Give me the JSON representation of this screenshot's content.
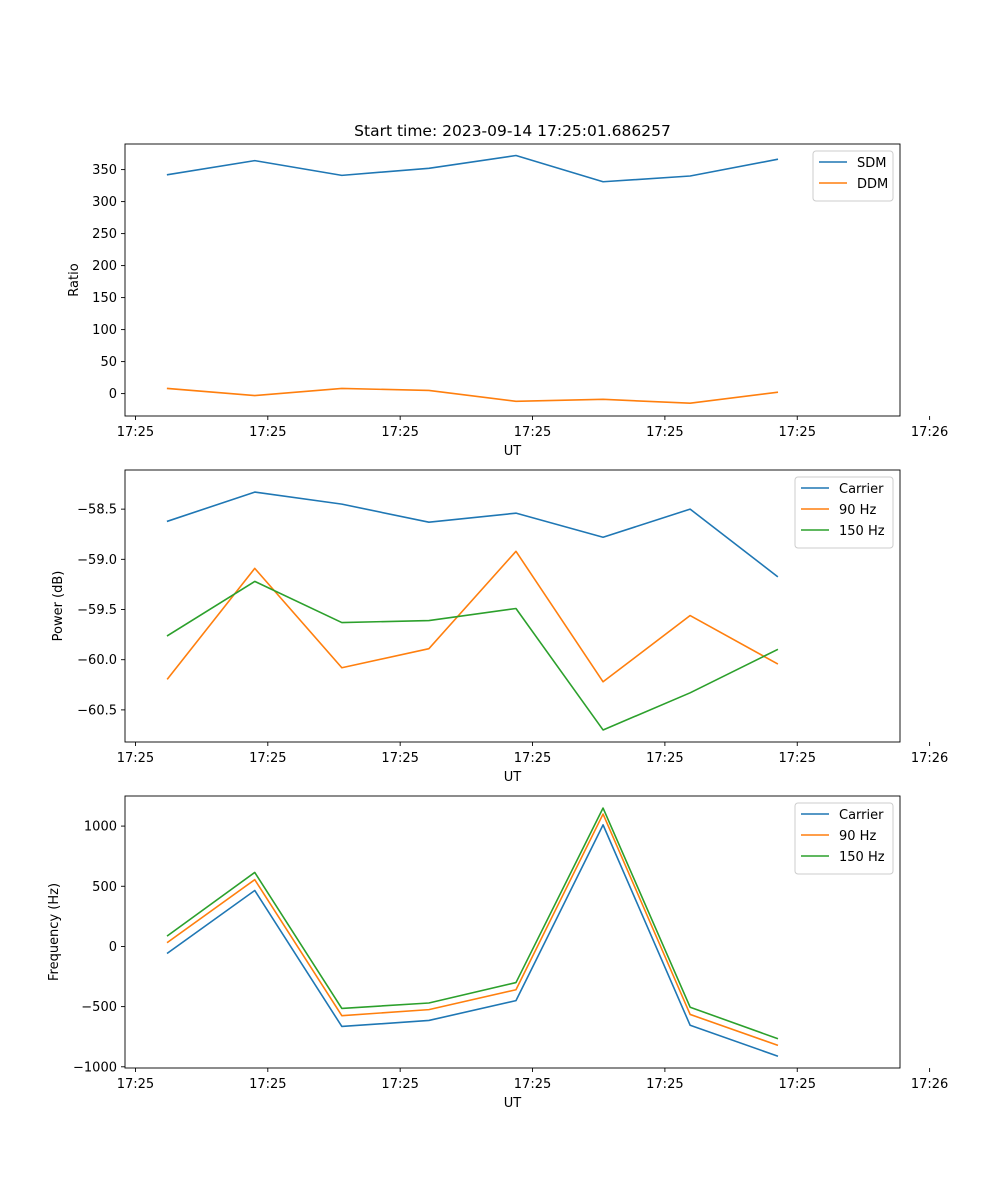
{
  "chart_data": [
    {
      "type": "line",
      "title": "Start time: 2023-09-14 17:25:01.686257",
      "xlabel": "UT",
      "ylabel": "Ratio",
      "x": [
        0,
        1,
        2,
        3,
        4,
        5,
        6,
        7
      ],
      "xlim": [
        -0.49,
        8.41
      ],
      "x_tick_positions": [
        -0.37,
        1.15,
        2.67,
        4.19,
        5.71,
        7.23,
        8.75
      ],
      "x_tick_labels": [
        "17:25",
        "17:25",
        "17:25",
        "17:25",
        "17:25",
        "17:25",
        "17:26"
      ],
      "ylim": [
        -35,
        390
      ],
      "y_ticks": [
        0,
        50,
        100,
        150,
        200,
        250,
        300,
        350
      ],
      "legend_position": "top-right",
      "series": [
        {
          "name": "SDM",
          "color": "#1f77b4",
          "values": [
            342,
            364,
            341,
            352,
            372,
            331,
            340,
            366
          ]
        },
        {
          "name": "DDM",
          "color": "#ff7f0e",
          "values": [
            8,
            -3,
            8,
            5,
            -12,
            -9,
            -15,
            2
          ]
        }
      ]
    },
    {
      "type": "line",
      "title": "",
      "xlabel": "UT",
      "ylabel": "Power (dB)",
      "x": [
        0,
        1,
        2,
        3,
        4,
        5,
        6,
        7
      ],
      "xlim": [
        -0.49,
        8.41
      ],
      "x_tick_positions": [
        -0.37,
        1.15,
        2.67,
        4.19,
        5.71,
        7.23,
        8.75
      ],
      "x_tick_labels": [
        "17:25",
        "17:25",
        "17:25",
        "17:25",
        "17:25",
        "17:25",
        "17:26"
      ],
      "ylim": [
        -60.82,
        -58.11
      ],
      "y_ticks": [
        -60.5,
        -60.0,
        -59.5,
        -59.0,
        -58.5
      ],
      "y_tick_labels": [
        "−60.5",
        "−60.0",
        "−59.5",
        "−59.0",
        "−58.5"
      ],
      "legend_position": "top-right",
      "series": [
        {
          "name": "Carrier",
          "color": "#1f77b4",
          "values": [
            -58.62,
            -58.33,
            -58.45,
            -58.63,
            -58.54,
            -58.78,
            -58.5,
            -59.17
          ]
        },
        {
          "name": "90 Hz",
          "color": "#ff7f0e",
          "values": [
            -60.19,
            -59.09,
            -60.08,
            -59.89,
            -58.92,
            -60.22,
            -59.56,
            -60.04
          ]
        },
        {
          "name": "150 Hz",
          "color": "#2ca02c",
          "values": [
            -59.76,
            -59.22,
            -59.63,
            -59.61,
            -59.49,
            -60.7,
            -60.33,
            -59.9
          ]
        }
      ]
    },
    {
      "type": "line",
      "title": "",
      "xlabel": "UT",
      "ylabel": "Frequency (Hz)",
      "x": [
        0,
        1,
        2,
        3,
        4,
        5,
        6,
        7
      ],
      "xlim": [
        -0.49,
        8.41
      ],
      "x_tick_positions": [
        -0.37,
        1.15,
        2.67,
        4.19,
        5.71,
        7.23,
        8.75
      ],
      "x_tick_labels": [
        "17:25",
        "17:25",
        "17:25",
        "17:25",
        "17:25",
        "17:25",
        "17:26"
      ],
      "ylim": [
        -1010,
        1250
      ],
      "y_ticks": [
        -1000,
        -500,
        0,
        500,
        1000
      ],
      "y_tick_labels": [
        "−1000",
        "−500",
        "0",
        "500",
        "1000"
      ],
      "legend_position": "top-right",
      "series": [
        {
          "name": "Carrier",
          "color": "#1f77b4",
          "values": [
            -55,
            465,
            -665,
            -615,
            -450,
            1010,
            -655,
            -910
          ]
        },
        {
          "name": "90 Hz",
          "color": "#ff7f0e",
          "values": [
            35,
            555,
            -575,
            -525,
            -360,
            1100,
            -565,
            -820
          ]
        },
        {
          "name": "150 Hz",
          "color": "#2ca02c",
          "values": [
            90,
            615,
            -515,
            -470,
            -300,
            1150,
            -505,
            -765
          ]
        }
      ]
    }
  ]
}
